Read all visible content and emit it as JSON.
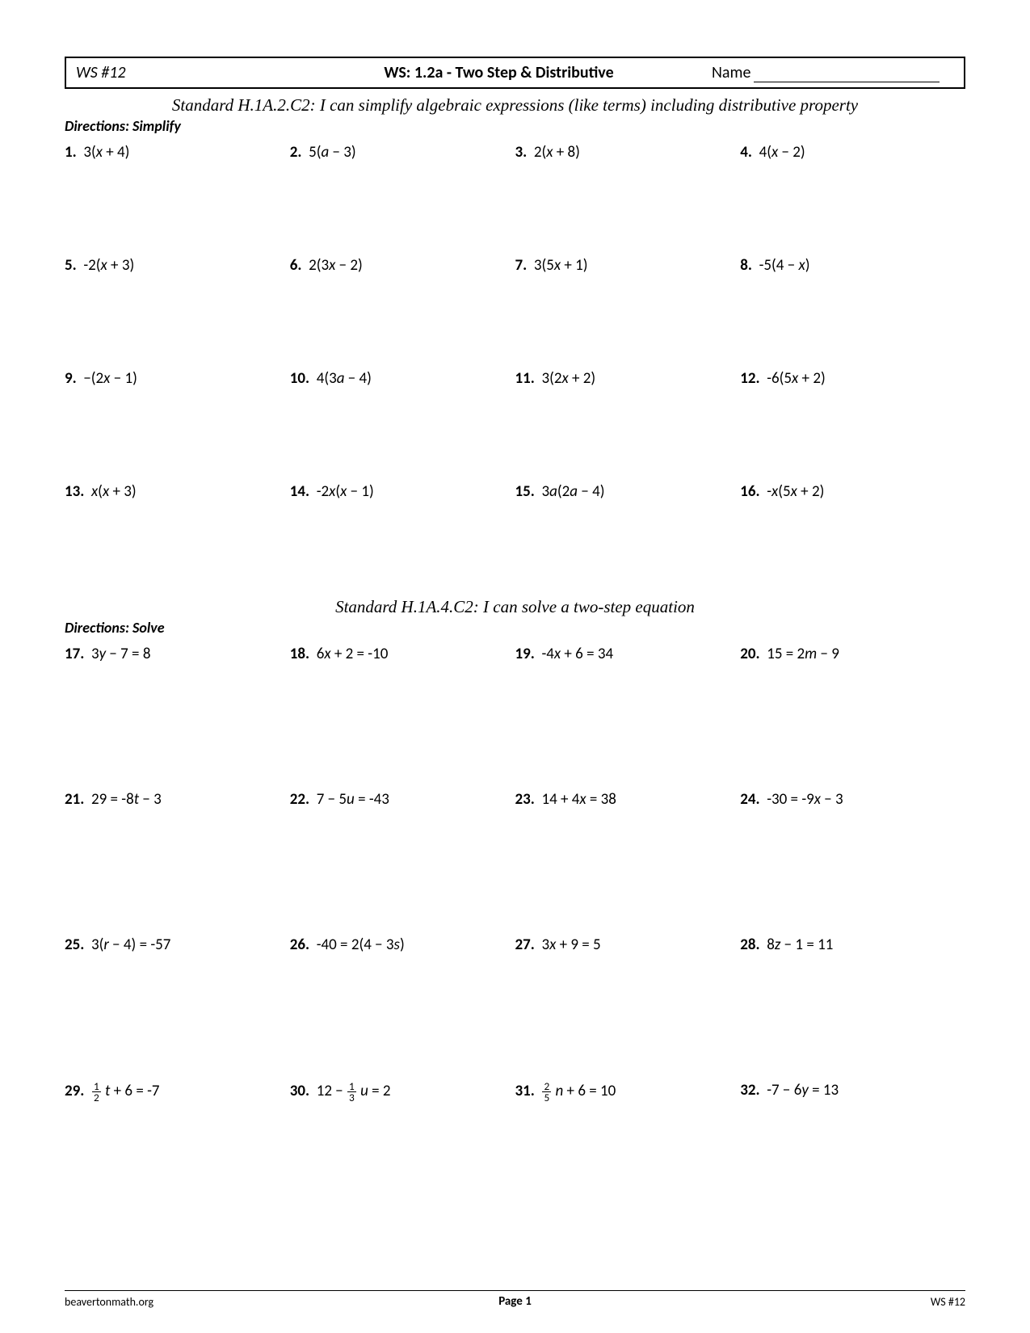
{
  "header": {
    "ws_number": "WS #12",
    "title": "WS: 1.2a - Two Step & Distributive",
    "name_label": "Name"
  },
  "section1": {
    "standard": "Standard H.1A.2.C2: I can simplify algebraic expressions (like terms) including distributive property",
    "directions": "Directions:  Simplify",
    "problems": {
      "p1": {
        "n": "1.",
        "html": "3(<span class='var'>x</span> + 4)"
      },
      "p2": {
        "n": "2.",
        "html": "5(<span class='var'>a</span> − 3)"
      },
      "p3": {
        "n": "3.",
        "html": "2(<span class='var'>x</span> + 8)"
      },
      "p4": {
        "n": "4.",
        "html": "4(<span class='var'>x</span> − 2)"
      },
      "p5": {
        "n": "5.",
        "html": "-2(<span class='var'>x</span> + 3)"
      },
      "p6": {
        "n": "6.",
        "html": "2(3<span class='var'>x</span> − 2)"
      },
      "p7": {
        "n": "7.",
        "html": "3(5<span class='var'>x</span> + 1)"
      },
      "p8": {
        "n": "8.",
        "html": "-5(4 − <span class='var'>x</span>)"
      },
      "p9": {
        "n": "9.",
        "html": "−(2<span class='var'>x</span> − 1)"
      },
      "p10": {
        "n": "10.",
        "html": "4(3<span class='var'>a</span> − 4)"
      },
      "p11": {
        "n": "11.",
        "html": "3(2<span class='var'>x</span> + 2)"
      },
      "p12": {
        "n": "12.",
        "html": "-6(5<span class='var'>x</span> + 2)"
      },
      "p13": {
        "n": "13.",
        "html": "<span class='var'>x</span>(<span class='var'>x</span> + 3)"
      },
      "p14": {
        "n": "14.",
        "html": "-2<span class='var'>x</span>(<span class='var'>x</span> − 1)"
      },
      "p15": {
        "n": "15.",
        "html": "3<span class='var'>a</span>(2<span class='var'>a</span> − 4)"
      },
      "p16": {
        "n": "16.",
        "html": "-<span class='var'>x</span>(5<span class='var'>x</span> + 2)"
      }
    }
  },
  "section2": {
    "standard": "Standard H.1A.4.C2: I can solve a two-step equation",
    "directions": "Directions:  Solve",
    "problems": {
      "p17": {
        "n": "17.",
        "html": "3<span class='var'>y</span> − 7 = 8"
      },
      "p18": {
        "n": "18.",
        "html": "6<span class='var'>x</span> + 2 = -10"
      },
      "p19": {
        "n": "19.",
        "html": "-4<span class='var'>x</span> + 6 = 34"
      },
      "p20": {
        "n": "20.",
        "html": "15 = 2<span class='var'>m</span> − 9"
      },
      "p21": {
        "n": "21.",
        "html": "29 = -8<span class='var'>t</span> − 3"
      },
      "p22": {
        "n": "22.",
        "html": "7 − 5<span class='var'>u</span> = -43"
      },
      "p23": {
        "n": "23.",
        "html": "14 + 4<span class='var'>x</span> = 38"
      },
      "p24": {
        "n": "24.",
        "html": "-30 = -9<span class='var'>x</span> − 3"
      },
      "p25": {
        "n": "25.",
        "html": "3(<span class='var'>r</span> − 4) = -57"
      },
      "p26": {
        "n": "26.",
        "html": "-40 = 2(4 − 3<span class='var'>s</span>)"
      },
      "p27": {
        "n": "27.",
        "html": "3<span class='var'>x</span> + 9 = 5"
      },
      "p28": {
        "n": "28.",
        "html": "8<span class='var'>z</span> − 1 = 11"
      },
      "p29": {
        "n": "29.",
        "html": "<span class='frac'><span class='top'>1</span><span class='bot'>2</span></span> <span class='var'>t</span> + 6 = -7"
      },
      "p30": {
        "n": "30.",
        "html": "12 − <span class='frac'><span class='top'>1</span><span class='bot'>3</span></span> <span class='var'>u</span> = 2"
      },
      "p31": {
        "n": "31.",
        "html": "<span class='frac'><span class='top'>2</span><span class='bot'>5</span></span> <span class='var'>n</span> + 6 = 10"
      },
      "p32": {
        "n": "32.",
        "html": "-7 − 6<span class='var'>y</span> = 13"
      }
    }
  },
  "footer": {
    "left": "beavertonmath.org",
    "center": "Page 1",
    "right": "WS #12"
  }
}
